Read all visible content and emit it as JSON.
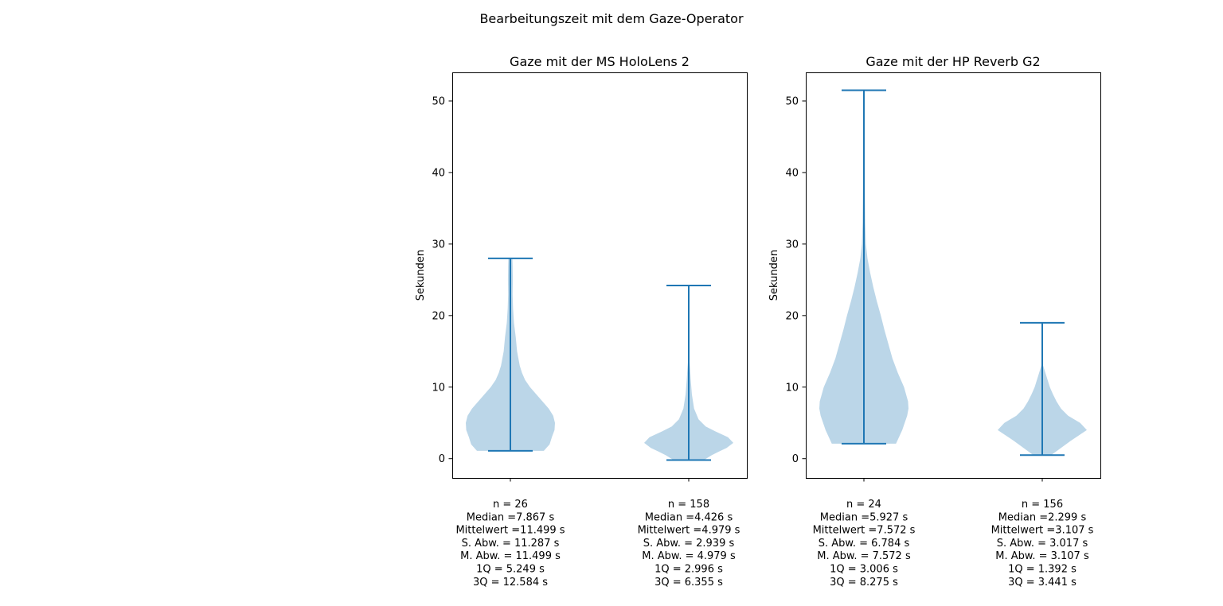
{
  "figure": {
    "suptitle": "Bearbeitungszeit mit dem Gaze-Operator"
  },
  "colors": {
    "violin_fill": "#1f77b4",
    "violin_alpha": 0.3,
    "line": "#1f77b4",
    "axes": "#000000"
  },
  "chart_data": [
    {
      "type": "violin",
      "title": "Gaze mit der MS HoloLens 2",
      "ylabel": "Sekunden",
      "xlabel": "",
      "ylim": [
        -2.7,
        54
      ],
      "yticks": [
        0,
        10,
        20,
        30,
        40,
        50
      ],
      "grid": false,
      "series": [
        {
          "min": 1.1,
          "max": 28.0,
          "density": [
            [
              1.1,
              0.75
            ],
            [
              2,
              0.88
            ],
            [
              3,
              0.93
            ],
            [
              4,
              0.99
            ],
            [
              5,
              1.0
            ],
            [
              6,
              0.96
            ],
            [
              7,
              0.86
            ],
            [
              8,
              0.72
            ],
            [
              9,
              0.58
            ],
            [
              10,
              0.44
            ],
            [
              11,
              0.33
            ],
            [
              12,
              0.26
            ],
            [
              13,
              0.21
            ],
            [
              14,
              0.18
            ],
            [
              15,
              0.15
            ],
            [
              17,
              0.12
            ],
            [
              19,
              0.08
            ],
            [
              21,
              0.06
            ],
            [
              23,
              0.05
            ],
            [
              25,
              0.055
            ],
            [
              27,
              0.05
            ],
            [
              28,
              0.045
            ]
          ],
          "stats_lines": [
            "n = 26",
            "Median =7.867 s",
            "Mittelwert =11.499 s",
            "S. Abw. = 11.287 s",
            "M. Abw. = 11.499 s",
            "1Q = 5.249 s",
            "3Q = 12.584 s"
          ]
        },
        {
          "min": -0.2,
          "max": 24.2,
          "density": [
            [
              -0.2,
              0.34
            ],
            [
              0.5,
              0.52
            ],
            [
              1,
              0.68
            ],
            [
              1.5,
              0.85
            ],
            [
              2.2,
              1.0
            ],
            [
              3,
              0.88
            ],
            [
              3.8,
              0.6
            ],
            [
              4.5,
              0.38
            ],
            [
              5.5,
              0.22
            ],
            [
              7,
              0.12
            ],
            [
              9,
              0.07
            ],
            [
              11,
              0.045
            ],
            [
              12.5,
              0.03
            ],
            [
              14,
              0.012
            ],
            [
              16,
              0.0
            ],
            [
              24.2,
              0.0
            ]
          ],
          "stats_lines": [
            "n = 158",
            "Median =4.426 s",
            "Mittelwert =4.979 s",
            "S. Abw. = 2.939 s",
            "M. Abw. = 4.979 s",
            "1Q = 2.996 s",
            "3Q = 6.355 s"
          ]
        }
      ]
    },
    {
      "type": "violin",
      "title": "Gaze mit der HP Reverb G2",
      "ylabel": "Sekunden",
      "xlabel": "",
      "ylim": [
        -2.7,
        54
      ],
      "yticks": [
        0,
        10,
        20,
        30,
        40,
        50
      ],
      "grid": false,
      "series": [
        {
          "min": 2.1,
          "max": 51.5,
          "density": [
            [
              2.1,
              0.72
            ],
            [
              4,
              0.86
            ],
            [
              6,
              0.97
            ],
            [
              7,
              1.0
            ],
            [
              8,
              0.99
            ],
            [
              10,
              0.9
            ],
            [
              12,
              0.76
            ],
            [
              14,
              0.64
            ],
            [
              16,
              0.55
            ],
            [
              18,
              0.46
            ],
            [
              20,
              0.38
            ],
            [
              22,
              0.29
            ],
            [
              24,
              0.21
            ],
            [
              26,
              0.14
            ],
            [
              28,
              0.08
            ],
            [
              30,
              0.045
            ],
            [
              33,
              0.03
            ],
            [
              36,
              0.025
            ],
            [
              40,
              0.02
            ],
            [
              45,
              0.018
            ],
            [
              50,
              0.015
            ],
            [
              51.5,
              0.012
            ]
          ],
          "stats_lines": [
            "n = 24",
            "Median =5.927 s",
            "Mittelwert =7.572 s",
            "S. Abw. = 6.784 s",
            "M. Abw. = 7.572 s",
            "1Q = 3.006 s",
            "3Q = 8.275 s"
          ]
        },
        {
          "min": 0.5,
          "max": 19.0,
          "density": [
            [
              0.5,
              0.2
            ],
            [
              1.5,
              0.42
            ],
            [
              2.5,
              0.64
            ],
            [
              3.5,
              0.88
            ],
            [
              4,
              1.0
            ],
            [
              5,
              0.85
            ],
            [
              6,
              0.58
            ],
            [
              7,
              0.42
            ],
            [
              8,
              0.32
            ],
            [
              9,
              0.24
            ],
            [
              10,
              0.17
            ],
            [
              11,
              0.12
            ],
            [
              12,
              0.07
            ],
            [
              13,
              0.02
            ],
            [
              14,
              0.0
            ],
            [
              19,
              0.0
            ]
          ],
          "stats_lines": [
            "n = 156",
            "Median =2.299 s",
            "Mittelwert =3.107 s",
            "S. Abw. = 3.017 s",
            "M. Abw. = 3.107 s",
            "1Q = 1.392 s",
            "3Q = 3.441 s"
          ]
        }
      ]
    }
  ]
}
